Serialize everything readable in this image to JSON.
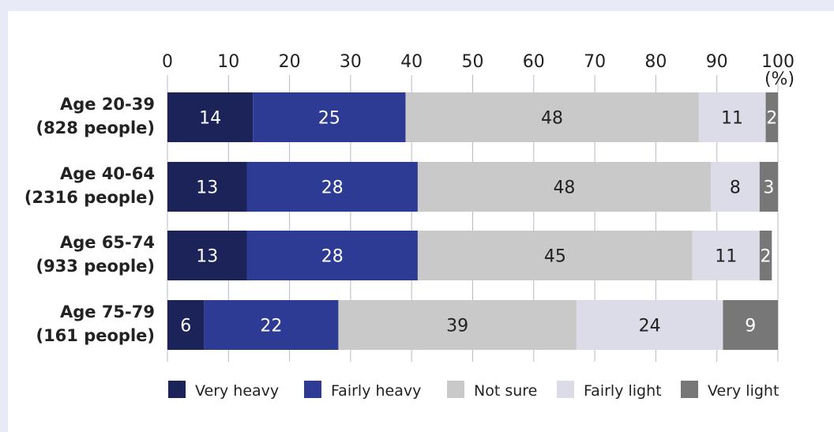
{
  "chart_data": {
    "type": "bar",
    "orientation": "horizontal",
    "stacked": true,
    "unit_label": "(%)",
    "xlim": [
      0,
      100
    ],
    "x_ticks": [
      "0",
      "10",
      "20",
      "30",
      "40",
      "50",
      "60",
      "70",
      "80",
      "90",
      "100"
    ],
    "categories": [
      [
        "Age 20-39",
        "(828 people)"
      ],
      [
        "Age 40-64",
        "(2316 people)"
      ],
      [
        "Age 65-74",
        "(933 people)"
      ],
      [
        "Age 75-79",
        "(161 people)"
      ]
    ],
    "series": [
      {
        "name": "Very heavy",
        "color": "#1b2359",
        "label_color": "#ffffff",
        "values": [
          14,
          13,
          13,
          6
        ]
      },
      {
        "name": "Fairly heavy",
        "color": "#2d3b94",
        "label_color": "#ffffff",
        "values": [
          25,
          28,
          28,
          22
        ]
      },
      {
        "name": "Not sure",
        "color": "#c9c9c9",
        "label_color": "#222222",
        "values": [
          48,
          48,
          45,
          39
        ]
      },
      {
        "name": "Fairly light",
        "color": "#dcdce9",
        "label_color": "#222222",
        "values": [
          11,
          8,
          11,
          24
        ]
      },
      {
        "name": "Very light",
        "color": "#777777",
        "label_color": "#ffffff",
        "values": [
          2,
          3,
          2,
          9
        ]
      }
    ],
    "grid": true,
    "legend_position": "bottom"
  }
}
